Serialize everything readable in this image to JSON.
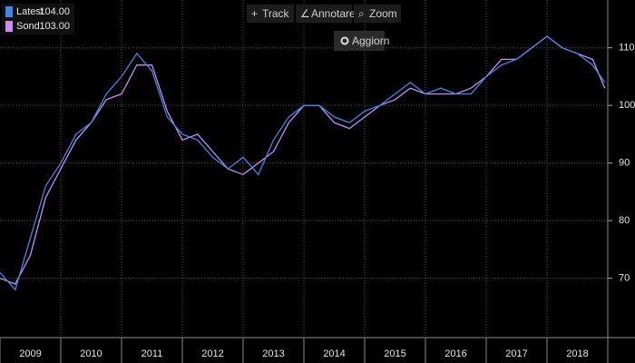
{
  "toolbar": {
    "items": [
      "Track",
      "Annotare",
      "Zoom"
    ],
    "button": "Aggiorn"
  },
  "chart_data": {
    "type": "line",
    "x": [
      2009,
      2009.25,
      2009.5,
      2009.75,
      2010,
      2010.25,
      2010.5,
      2010.75,
      2011,
      2011.25,
      2011.5,
      2011.75,
      2012,
      2012.25,
      2012.5,
      2012.75,
      2013,
      2013.25,
      2013.5,
      2013.75,
      2014,
      2014.25,
      2014.5,
      2014.75,
      2015,
      2015.25,
      2015.5,
      2015.75,
      2016,
      2016.25,
      2016.5,
      2016.75,
      2017,
      2017.25,
      2017.5,
      2017.75,
      2018,
      2018.25,
      2018.5,
      2018.75,
      2018.95
    ],
    "series": [
      {
        "name": "Latest",
        "color": "#3f86e8",
        "legend_value": {
          "value": 104,
          "label": "104.00"
        },
        "values": [
          71,
          68,
          77,
          86,
          90,
          95,
          97,
          102,
          105,
          109,
          106,
          98,
          95,
          94,
          91,
          89,
          91,
          88,
          94,
          98,
          100,
          100,
          98,
          97,
          99,
          100,
          102,
          104,
          102,
          103,
          102,
          102,
          105,
          107,
          108,
          110,
          112,
          110,
          109,
          107,
          104
        ]
      },
      {
        "name": "Sond",
        "color": "#c98ef2",
        "legend_value": {
          "value": 103,
          "label": "103.00"
        },
        "values": [
          70,
          69,
          74,
          84,
          89,
          94,
          97,
          101,
          102,
          107,
          107,
          99,
          94,
          95,
          92,
          89,
          88,
          90,
          92,
          97,
          100,
          100,
          97,
          96,
          98,
          100,
          101,
          103,
          102,
          102,
          102,
          103,
          105,
          108,
          108,
          110,
          112,
          110,
          109,
          108,
          103
        ]
      }
    ],
    "xlim": [
      2009,
      2019
    ],
    "xticks": [
      2009,
      2010,
      2011,
      2012,
      2013,
      2014,
      2015,
      2016,
      2017,
      2018
    ],
    "ylim": [
      59.7,
      118.3
    ],
    "yticks": [
      70,
      80,
      90,
      100,
      110
    ],
    "grid": true
  }
}
